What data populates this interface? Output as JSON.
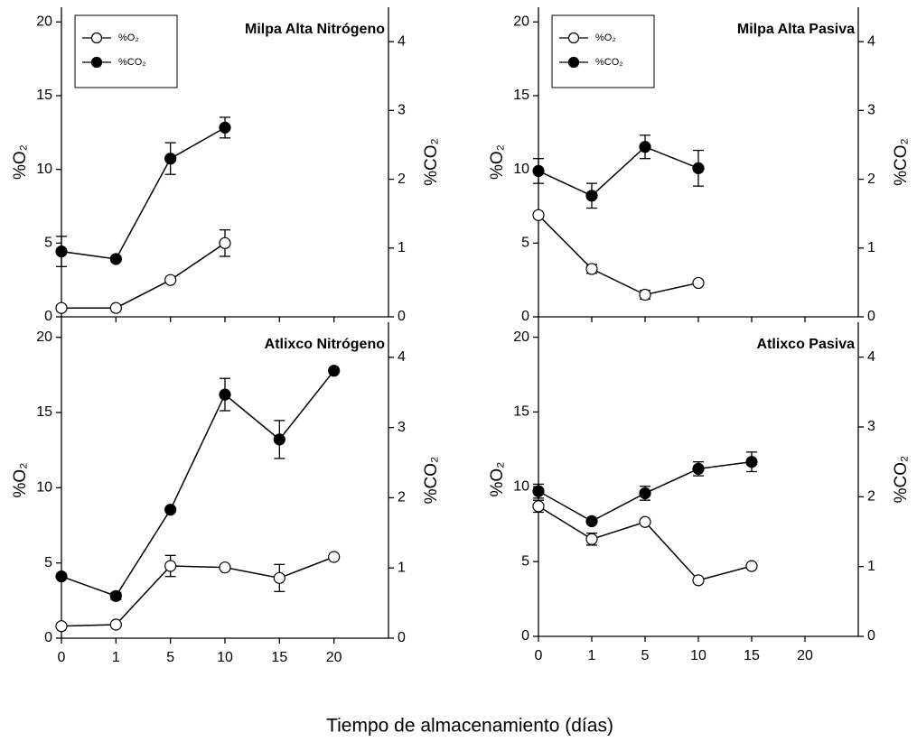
{
  "chart_data": [
    {
      "type": "line",
      "title": "Milpa Alta Nitrógeno",
      "categories": [
        null,
        null,
        null,
        null,
        null,
        null
      ],
      "ylabel": "%O₂",
      "y2label": "%CO₂",
      "ylim": [
        0,
        21
      ],
      "yticks": [
        0,
        5,
        10,
        15,
        20
      ],
      "y2lim": [
        0,
        4.5
      ],
      "y2ticks": [
        0,
        1,
        2,
        3,
        4
      ],
      "legend": "upper left",
      "series": [
        {
          "name": "%O₂",
          "color": "#ffffff",
          "values": [
            0.6,
            0.6,
            2.5,
            5.0,
            null,
            null
          ],
          "errors": [
            null,
            null,
            null,
            0.9,
            null,
            null
          ]
        },
        {
          "name": "%CO₂",
          "color": "#000000",
          "axis": "y2",
          "values": [
            0.95,
            0.84,
            2.3,
            2.75,
            null,
            null
          ],
          "errors": [
            0.22,
            null,
            0.23,
            0.15,
            null,
            null
          ]
        }
      ]
    },
    {
      "type": "line",
      "title": "Milpa Alta Pasiva",
      "categories": [
        null,
        null,
        null,
        null,
        null,
        null
      ],
      "ylabel": "%O₂",
      "y2label": "%CO₂",
      "ylim": [
        0,
        21
      ],
      "yticks": [
        0,
        5,
        10,
        15,
        20
      ],
      "y2lim": [
        0,
        4.5
      ],
      "y2ticks": [
        0,
        1,
        2,
        3,
        4
      ],
      "legend": "upper left",
      "series": [
        {
          "name": "%O₂",
          "color": "#ffffff",
          "values": [
            6.9,
            3.25,
            1.5,
            2.3,
            null,
            null
          ],
          "errors": [
            null,
            0.3,
            0.3,
            null,
            null,
            null
          ]
        },
        {
          "name": "%CO₂",
          "color": "#000000",
          "axis": "y2",
          "values": [
            2.12,
            1.76,
            2.47,
            2.16,
            null,
            null
          ],
          "errors": [
            0.18,
            0.18,
            0.17,
            0.26,
            null,
            null
          ]
        }
      ]
    },
    {
      "type": "line",
      "title": "Atlixco Nitrógeno",
      "categories": [
        "0",
        "1",
        "5",
        "10",
        "15",
        "20"
      ],
      "ylabel": "%O₂",
      "y2label": "%CO₂",
      "ylim": [
        0,
        21
      ],
      "yticks": [
        0,
        5,
        10,
        15,
        20
      ],
      "y2lim": [
        0,
        4.5
      ],
      "y2ticks": [
        0,
        1,
        2,
        3,
        4
      ],
      "series": [
        {
          "color": "#ffffff",
          "values": [
            0.8,
            0.9,
            4.8,
            4.7,
            4.0,
            5.4
          ],
          "errors": [
            null,
            null,
            0.7,
            null,
            0.9,
            null
          ]
        },
        {
          "color": "#000000",
          "axis": "y2",
          "values": [
            0.88,
            0.6,
            1.83,
            3.47,
            2.83,
            3.81
          ],
          "errors": [
            null,
            0.05,
            null,
            0.23,
            0.27,
            null
          ]
        }
      ]
    },
    {
      "type": "line",
      "title": "Atlixco Pasiva",
      "categories": [
        "0",
        "1",
        "5",
        "10",
        "15",
        "20"
      ],
      "ylabel": "%O₂",
      "y2label": "%CO₂",
      "ylim": [
        0,
        21
      ],
      "yticks": [
        0,
        5,
        10,
        15,
        20
      ],
      "y2lim": [
        0,
        4.5
      ],
      "y2ticks": [
        0,
        1,
        2,
        3,
        4
      ],
      "series": [
        {
          "color": "#ffffff",
          "values": [
            8.7,
            6.5,
            7.65,
            3.75,
            4.7,
            null
          ],
          "errors": [
            0.4,
            0.4,
            null,
            null,
            null,
            null
          ]
        },
        {
          "color": "#000000",
          "axis": "y2",
          "values": [
            2.08,
            1.65,
            2.05,
            2.4,
            2.5,
            null
          ],
          "errors": [
            0.1,
            null,
            0.1,
            0.1,
            0.14,
            null
          ]
        }
      ]
    }
  ],
  "xlabel": "Tiempo de almacenamiento (días)"
}
